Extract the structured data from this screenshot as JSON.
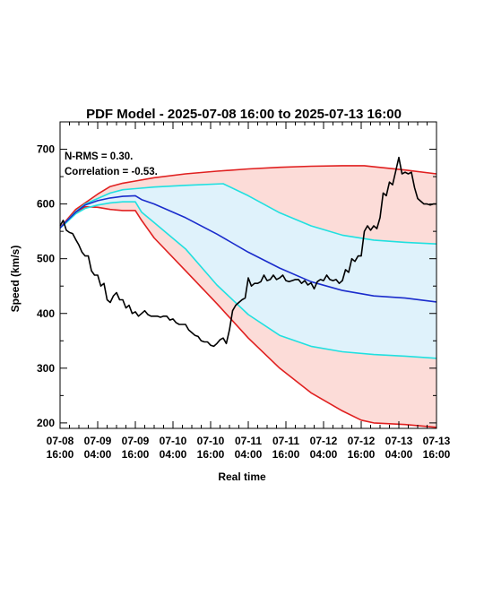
{
  "chart_data": {
    "type": "line",
    "title": "PDF Model - 2025-07-08 16:00 to 2025-07-13 16:00",
    "xlabel": "Real time",
    "ylabel": "Speed (km/s)",
    "xlim": [
      0,
      120
    ],
    "ylim": [
      190,
      750
    ],
    "x_unit": "hours since 2025-07-08 16:00",
    "yticks": [
      200,
      300,
      400,
      500,
      600,
      700
    ],
    "xticks": [
      {
        "x": 0,
        "line1": "07-08",
        "line2": "16:00"
      },
      {
        "x": 12,
        "line1": "07-09",
        "line2": "04:00"
      },
      {
        "x": 24,
        "line1": "07-09",
        "line2": "16:00"
      },
      {
        "x": 36,
        "line1": "07-10",
        "line2": "04:00"
      },
      {
        "x": 48,
        "line1": "07-10",
        "line2": "16:00"
      },
      {
        "x": 60,
        "line1": "07-11",
        "line2": "04:00"
      },
      {
        "x": 72,
        "line1": "07-11",
        "line2": "16:00"
      },
      {
        "x": 84,
        "line1": "07-12",
        "line2": "04:00"
      },
      {
        "x": 96,
        "line1": "07-12",
        "line2": "16:00"
      },
      {
        "x": 108,
        "line1": "07-13",
        "line2": "04:00"
      },
      {
        "x": 120,
        "line1": "07-13",
        "line2": "16:00"
      }
    ],
    "annotations": [
      "N-RMS = 0.30.",
      "Correlation = -0.53."
    ],
    "colors": {
      "outer_band": "#fcdcd8",
      "inner_band": "#dff2fb",
      "outer_line": "#e02020",
      "inner_line": "#20e0e0",
      "median": "#1a2ccc",
      "observed": "#000000"
    },
    "outer_upper": {
      "x": [
        0,
        2,
        5,
        8,
        12,
        16,
        20,
        24,
        30,
        40,
        50,
        60,
        70,
        80,
        90,
        97,
        100,
        110,
        120
      ],
      "y": [
        556,
        570,
        590,
        602,
        618,
        632,
        638,
        642,
        648,
        655,
        660,
        664,
        667,
        669,
        670,
        670,
        668,
        662,
        655
      ]
    },
    "outer_lower": {
      "x": [
        0,
        2,
        5,
        8,
        12,
        16,
        20,
        24,
        26,
        30,
        40,
        50,
        60,
        70,
        80,
        90,
        96,
        100,
        110,
        120
      ],
      "y": [
        556,
        568,
        585,
        595,
        594,
        590,
        588,
        588,
        570,
        538,
        478,
        418,
        355,
        300,
        255,
        222,
        205,
        200,
        197,
        192
      ]
    },
    "inner_upper": {
      "x": [
        0,
        2,
        5,
        8,
        12,
        16,
        20,
        24,
        30,
        40,
        52,
        60,
        70,
        80,
        90,
        100,
        110,
        120
      ],
      "y": [
        556,
        568,
        586,
        600,
        610,
        620,
        626,
        628,
        631,
        634,
        637,
        615,
        584,
        560,
        543,
        534,
        530,
        527
      ]
    },
    "inner_lower": {
      "x": [
        0,
        2,
        5,
        8,
        12,
        16,
        20,
        24,
        26,
        30,
        40,
        50,
        60,
        70,
        80,
        90,
        100,
        110,
        120
      ],
      "y": [
        556,
        566,
        582,
        592,
        598,
        602,
        604,
        604,
        585,
        566,
        518,
        452,
        398,
        360,
        340,
        330,
        325,
        322,
        318
      ]
    },
    "median": {
      "x": [
        0,
        2,
        5,
        8,
        12,
        16,
        20,
        24,
        26,
        30,
        40,
        50,
        60,
        70,
        80,
        90,
        100,
        110,
        120
      ],
      "y": [
        556,
        568,
        585,
        598,
        606,
        611,
        614,
        615,
        608,
        600,
        575,
        545,
        512,
        483,
        458,
        442,
        432,
        428,
        421
      ]
    },
    "observed": {
      "x": [
        0,
        1,
        2,
        3,
        4,
        5,
        6,
        7,
        8,
        9,
        10,
        11,
        12,
        13,
        14,
        15,
        16,
        17,
        18,
        19,
        20,
        21,
        22,
        23,
        24,
        25,
        26,
        27,
        28,
        29,
        30,
        31,
        32,
        33,
        34,
        35,
        36,
        37,
        38,
        39,
        40,
        41,
        42,
        43,
        44,
        45,
        46,
        47,
        48,
        49,
        50,
        51,
        52,
        53,
        54,
        55,
        56,
        57,
        58,
        59,
        60,
        61,
        62,
        63,
        64,
        65,
        66,
        67,
        68,
        69,
        70,
        71,
        72,
        73,
        74,
        75,
        76,
        77,
        78,
        79,
        80,
        81,
        82,
        83,
        84,
        85,
        86,
        87,
        88,
        89,
        90,
        91,
        92,
        93,
        94,
        95,
        96,
        97,
        98,
        99,
        100,
        101,
        102,
        103,
        104,
        105,
        106,
        107,
        108,
        109,
        110,
        111,
        112,
        113,
        114,
        115,
        116,
        117,
        118,
        119,
        120
      ],
      "y": [
        560,
        570,
        552,
        548,
        546,
        535,
        525,
        512,
        505,
        505,
        478,
        470,
        470,
        450,
        455,
        425,
        420,
        432,
        438,
        425,
        425,
        410,
        415,
        400,
        403,
        395,
        400,
        405,
        398,
        395,
        395,
        395,
        393,
        395,
        395,
        388,
        390,
        383,
        380,
        380,
        380,
        370,
        365,
        360,
        358,
        350,
        348,
        348,
        342,
        340,
        345,
        352,
        355,
        345,
        370,
        405,
        415,
        420,
        425,
        428,
        465,
        450,
        455,
        455,
        458,
        470,
        460,
        462,
        470,
        462,
        465,
        470,
        460,
        458,
        460,
        462,
        462,
        455,
        460,
        452,
        456,
        445,
        458,
        462,
        460,
        470,
        462,
        460,
        462,
        455,
        460,
        480,
        475,
        500,
        495,
        505,
        505,
        550,
        560,
        552,
        560,
        555,
        575,
        620,
        615,
        640,
        635,
        660,
        685,
        655,
        658,
        655,
        658,
        630,
        610,
        605,
        600,
        600,
        598,
        600,
        600
      ]
    }
  }
}
